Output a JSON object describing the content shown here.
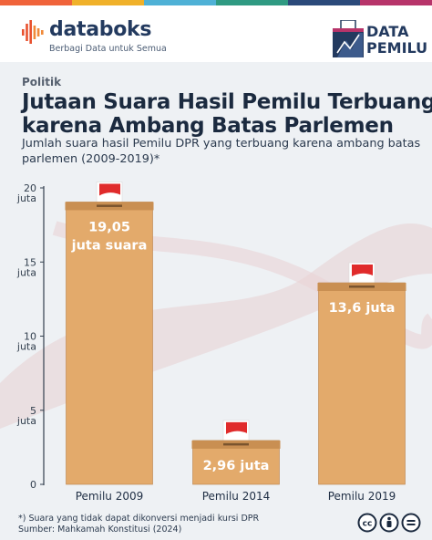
{
  "brand": {
    "name": "databoks",
    "tagline": "Berbagi Data untuk Semua"
  },
  "badge": {
    "line1": "DATA",
    "line2": "PEMILU"
  },
  "colors": {
    "bar": "#e3aa6b",
    "bar_cap": "#c98f52",
    "bar_edge": "#b9814a",
    "flag_red": "#e02b2b",
    "ballot": "#ffffff",
    "top_bar": [
      "#f0633a",
      "#f0b12a",
      "#4fb1d6",
      "#2f9a82",
      "#2b4a7a",
      "#b7346a"
    ]
  },
  "category": "Politik",
  "title": [
    "Jutaan Suara Hasil Pemilu Terbuang",
    "karena Ambang Batas Parlemen"
  ],
  "subtitle": [
    "Jumlah suara hasil Pemilu DPR yang terbuang karena ambang batas",
    "parlemen (2009-2019)*"
  ],
  "chart_data": {
    "type": "bar",
    "categories": [
      "Pemilu 2009",
      "Pemilu 2014",
      "Pemilu 2019"
    ],
    "values": [
      19.05,
      2.96,
      13.6
    ],
    "data_labels": [
      [
        "19,05",
        "juta suara"
      ],
      [
        "2,96 juta"
      ],
      [
        "13,6 juta"
      ]
    ],
    "yticks": [
      {
        "value": 0,
        "label": [
          "0"
        ]
      },
      {
        "value": 5,
        "label": [
          "5",
          "juta"
        ]
      },
      {
        "value": 10,
        "label": [
          "10",
          "juta"
        ]
      },
      {
        "value": 15,
        "label": [
          "15",
          "juta"
        ]
      },
      {
        "value": 20,
        "label": [
          "20",
          "juta"
        ]
      }
    ],
    "ylim": [
      0,
      20
    ],
    "unit": "juta",
    "grid": false
  },
  "footnote": {
    "note": "*) Suara yang tidak dapat dikonversi menjadi kursi DPR",
    "source": "Sumber: Mahkamah Konstitusi (2024)"
  },
  "license_icons": [
    "cc-icon",
    "by-icon",
    "equals-icon"
  ]
}
